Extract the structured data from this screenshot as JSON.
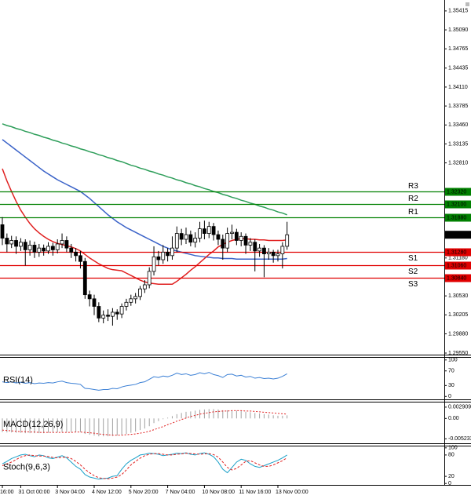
{
  "chart_data": {
    "type": "candlestick",
    "categories": [
      "16:00",
      null,
      null,
      null,
      "31 Oct 00:00",
      null,
      null,
      null,
      null,
      null,
      null,
      null,
      "3 Nov 04:00",
      null,
      null,
      null,
      null,
      null,
      null,
      null,
      "4 Nov 12:00",
      null,
      null,
      null,
      null,
      null,
      null,
      null,
      "5 Nov 20:00",
      null,
      null,
      null,
      null,
      null,
      null,
      null,
      "7 Nov 04:00",
      null,
      null,
      null,
      null,
      null,
      null,
      null,
      "10 Nov 08:00",
      null,
      null,
      null,
      null,
      null,
      null,
      null,
      "11 Nov 16:00",
      null,
      null,
      null,
      null,
      null,
      null,
      null,
      "13 Nov 00:00",
      null,
      null
    ],
    "open": [
      1.3175,
      1.3152,
      1.3142,
      1.3148,
      1.3138,
      1.3145,
      1.3132,
      1.314,
      1.3128,
      1.3135,
      1.313,
      1.3138,
      1.3132,
      1.3142,
      1.3148,
      1.3135,
      1.3128,
      1.3122,
      1.3112,
      1.3055,
      1.3048,
      1.3035,
      1.3015,
      1.302,
      1.3018,
      1.3025,
      1.3022,
      1.3035,
      1.3042,
      1.3048,
      1.3052,
      1.3065,
      1.3072,
      1.3095,
      1.312,
      1.3115,
      1.3128,
      1.3122,
      1.3135,
      1.316,
      1.315,
      1.3158,
      1.3145,
      1.3152,
      1.3168,
      1.316,
      1.3172,
      1.3158,
      1.315,
      1.3135,
      1.316,
      1.3162,
      1.3148,
      1.3155,
      1.314,
      1.3145,
      1.313,
      1.3135,
      1.3125,
      1.3128,
      1.3122,
      1.3125,
      1.3138
    ],
    "high": [
      1.3188,
      1.316,
      1.3156,
      1.3155,
      1.3152,
      1.315,
      1.3148,
      1.3146,
      1.3142,
      1.3141,
      1.3145,
      1.3144,
      1.315,
      1.316,
      1.3155,
      1.3142,
      1.3135,
      1.313,
      1.3118,
      1.3062,
      1.3055,
      1.3042,
      1.3028,
      1.303,
      1.3032,
      1.303,
      1.304,
      1.3048,
      1.3055,
      1.3058,
      1.307,
      1.308,
      1.3102,
      1.3138,
      1.313,
      1.314,
      1.3135,
      1.3155,
      1.3172,
      1.3168,
      1.317,
      1.3165,
      1.3162,
      1.318,
      1.3182,
      1.318,
      1.3178,
      1.3165,
      1.3158,
      1.317,
      1.3175,
      1.3168,
      1.3162,
      1.316,
      1.3152,
      1.315,
      1.3142,
      1.314,
      1.3135,
      1.3132,
      1.3132,
      1.3145,
      1.318
    ],
    "low": [
      1.314,
      1.3128,
      1.3135,
      1.3125,
      1.313,
      1.3105,
      1.3122,
      1.3118,
      1.312,
      1.3122,
      1.3125,
      1.3122,
      1.3126,
      1.3135,
      1.3128,
      1.3118,
      1.3112,
      1.31,
      1.3048,
      1.3035,
      1.302,
      1.3008,
      1.3006,
      1.301,
      1.3002,
      1.3012,
      1.3015,
      1.3028,
      1.3036,
      1.304,
      1.3046,
      1.3058,
      1.3066,
      1.3088,
      1.3105,
      1.3108,
      1.3112,
      1.3115,
      1.3128,
      1.314,
      1.3142,
      1.3138,
      1.3136,
      1.3145,
      1.315,
      1.3152,
      1.3148,
      1.314,
      1.3115,
      1.3128,
      1.315,
      1.314,
      1.3138,
      1.3125,
      1.313,
      1.3095,
      1.312,
      1.3085,
      1.3115,
      1.311,
      1.3112,
      1.31,
      1.3132
    ],
    "close": [
      1.3152,
      1.3142,
      1.3148,
      1.3138,
      1.3145,
      1.3132,
      1.314,
      1.3128,
      1.3135,
      1.313,
      1.3138,
      1.3132,
      1.3142,
      1.3148,
      1.3135,
      1.3128,
      1.3122,
      1.3112,
      1.3055,
      1.3048,
      1.3035,
      1.3015,
      1.302,
      1.3018,
      1.3025,
      1.3022,
      1.3035,
      1.3042,
      1.3048,
      1.3052,
      1.3065,
      1.3072,
      1.3095,
      1.312,
      1.3115,
      1.3128,
      1.3122,
      1.3135,
      1.316,
      1.315,
      1.3158,
      1.3145,
      1.3152,
      1.3168,
      1.316,
      1.3172,
      1.3158,
      1.315,
      1.3135,
      1.316,
      1.3162,
      1.3148,
      1.3155,
      1.314,
      1.3145,
      1.313,
      1.3135,
      1.3125,
      1.3128,
      1.3122,
      1.3125,
      1.3138,
      1.31578
    ],
    "series": [
      {
        "color": "#2e9e5a",
        "values": [
          1.3348,
          1.3345,
          1.3343,
          1.334,
          1.3338,
          1.3335,
          1.3333,
          1.333,
          1.3328,
          1.3325,
          1.3323,
          1.332,
          1.3318,
          1.3315,
          1.3313,
          1.331,
          1.3308,
          1.3305,
          1.3303,
          1.33,
          1.3298,
          1.3295,
          1.3293,
          1.329,
          1.3288,
          1.3285,
          1.3283,
          1.328,
          1.3277,
          1.3275,
          1.3272,
          1.327,
          1.3267,
          1.3265,
          1.3262,
          1.326,
          1.3257,
          1.3255,
          1.3252,
          1.325,
          1.3247,
          1.3245,
          1.3242,
          1.324,
          1.3237,
          1.3235,
          1.3232,
          1.323,
          1.3227,
          1.3225,
          1.3222,
          1.322,
          1.3217,
          1.3215,
          1.3212,
          1.321,
          1.3207,
          1.3205,
          1.3202,
          1.32,
          1.3197,
          1.3195,
          1.3192
        ]
      },
      {
        "color": "#3a62c8",
        "values": [
          1.3321,
          1.3315,
          1.3309,
          1.3303,
          1.3297,
          1.3291,
          1.3285,
          1.3279,
          1.3273,
          1.3267,
          1.3262,
          1.3257,
          1.3252,
          1.3248,
          1.3244,
          1.324,
          1.3236,
          1.3232,
          1.3226,
          1.322,
          1.3213,
          1.3206,
          1.3199,
          1.3192,
          1.3186,
          1.318,
          1.3175,
          1.317,
          1.3166,
          1.3162,
          1.3158,
          1.3154,
          1.315,
          1.3146,
          1.3142,
          1.3138,
          1.3135,
          1.3132,
          1.313,
          1.3128,
          1.3126,
          1.3124,
          1.3122,
          1.3121,
          1.312,
          1.3119,
          1.3118,
          1.3118,
          1.3117,
          1.3117,
          1.3117,
          1.3116,
          1.3116,
          1.3116,
          1.3116,
          1.3116,
          1.3116,
          1.3116,
          1.3116,
          1.3116,
          1.3116,
          1.3116,
          1.3117
        ]
      },
      {
        "color": "#e02020",
        "values": [
          1.3271,
          1.325,
          1.3232,
          1.3215,
          1.32,
          1.3188,
          1.3177,
          1.3168,
          1.3161,
          1.3155,
          1.315,
          1.3146,
          1.3143,
          1.3141,
          1.3139,
          1.3137,
          1.3134,
          1.313,
          1.3124,
          1.3118,
          1.3113,
          1.3108,
          1.3104,
          1.31,
          1.3098,
          1.3097,
          1.3096,
          1.3092,
          1.3088,
          1.3084,
          1.308,
          1.3077,
          1.3075,
          1.3074,
          1.3073,
          1.3073,
          1.3073,
          1.3073,
          1.3078,
          1.3084,
          1.309,
          1.3097,
          1.3103,
          1.311,
          1.3117,
          1.3124,
          1.313,
          1.3137,
          1.3141,
          1.3145,
          1.3148,
          1.315,
          1.3151,
          1.3151,
          1.315,
          1.315,
          1.3149,
          1.3149,
          1.3148,
          1.3148,
          1.3148,
          1.3148,
          1.3149
        ]
      }
    ],
    "ylim": [
      1.29523,
      1.35602
    ],
    "yticks": [
      1.35415,
      {
        "value": 1.3509,
        "label": "1.35090"
      },
      1.34765,
      1.34435,
      {
        "value": 1.3411,
        "label": "1.34110"
      },
      1.33785,
      {
        "value": 1.3346,
        "label": "1.33460"
      },
      1.33135,
      {
        "value": 1.3281,
        "label": "1.32810"
      },
      {
        "value": 1.3118,
        "label": "1.31180"
      },
      {
        "value": 1.3053,
        "label": "1.30530"
      },
      1.30205,
      {
        "value": 1.2988,
        "label": "1.29880"
      },
      {
        "value": 1.2955,
        "label": "1.29550"
      }
    ],
    "levels": [
      {
        "name": "R3",
        "value": 1.3232,
        "label": "1.32320",
        "color": "#008000"
      },
      {
        "name": "R2",
        "value": 1.321,
        "label": "1.32100",
        "color": "#008000"
      },
      {
        "name": "R1",
        "value": 1.3188,
        "label": "1.31880",
        "color": "#008000"
      },
      {
        "name": "S1",
        "value": 1.3128,
        "label": "1.31280",
        "color": "#e00000"
      },
      {
        "name": "S2",
        "value": 1.3106,
        "label": "1.31060",
        "color": "#e00000"
      },
      {
        "name": "S3",
        "value": 1.3084,
        "label": "1.30840",
        "color": "#e00000"
      }
    ],
    "last_price": 1.31578,
    "indicators": [
      {
        "type": "line",
        "title": "RSI(14)",
        "ylim": [
          -8,
          106
        ],
        "yticks": [
          100,
          70,
          30,
          0
        ],
        "series": [
          {
            "color": "#3a7fd5",
            "values": [
              40,
              38,
              40,
              37,
              39,
              36,
              38,
              35,
              37,
              36,
              38,
              37,
              40,
              42,
              38,
              36,
              35,
              33,
              22,
              21,
              19,
              17,
              19,
              19,
              22,
              21,
              26,
              29,
              31,
              33,
              38,
              40,
              47,
              54,
              52,
              56,
              54,
              58,
              64,
              60,
              62,
              58,
              60,
              65,
              62,
              66,
              60,
              57,
              52,
              60,
              61,
              56,
              58,
              53,
              55,
              50,
              52,
              49,
              50,
              48,
              50,
              55,
              62
            ]
          }
        ]
      },
      {
        "type": "macd",
        "title": "MACD(12,26,9)",
        "ylim": [
          -0.0064,
          0.0041
        ],
        "yticks": [
          0.002909,
          {
            "value": 0,
            "label": "0.00"
          },
          -0.005233
        ],
        "series": [
          {
            "color": "#a0a0a0",
            "values": [
              -0.0035,
              -0.0036,
              -0.0036,
              -0.0037,
              -0.0037,
              -0.0038,
              -0.0038,
              -0.0038,
              -0.0038,
              -0.0038,
              -0.0037,
              -0.0037,
              -0.0036,
              -0.0035,
              -0.0035,
              -0.0035,
              -0.0035,
              -0.0035,
              -0.004,
              -0.0042,
              -0.0044,
              -0.0046,
              -0.0046,
              -0.0046,
              -0.0045,
              -0.0044,
              -0.0042,
              -0.004,
              -0.0037,
              -0.0034,
              -0.003,
              -0.0026,
              -0.002,
              -0.0012,
              -0.0007,
              -0.0002,
              0.0002,
              0.0006,
              0.0011,
              0.0014,
              0.0017,
              0.0018,
              0.002,
              0.0022,
              0.0023,
              0.0024,
              0.0024,
              0.0023,
              0.0021,
              0.0021,
              0.0021,
              0.002,
              0.0019,
              0.0017,
              0.0016,
              0.0014,
              0.0013,
              0.0011,
              0.001,
              0.0008,
              0.0007,
              0.0007,
              0.0008
            ]
          },
          {
            "color": "#e02020",
            "values": [
              -0.003,
              -0.0031,
              -0.0032,
              -0.0033,
              -0.0034,
              -0.0034,
              -0.0035,
              -0.0035,
              -0.0036,
              -0.0036,
              -0.0036,
              -0.0036,
              -0.0036,
              -0.0036,
              -0.0036,
              -0.0036,
              -0.0035,
              -0.0035,
              -0.0036,
              -0.0037,
              -0.0038,
              -0.004,
              -0.0041,
              -0.0042,
              -0.0043,
              -0.0043,
              -0.0043,
              -0.0042,
              -0.0041,
              -0.004,
              -0.0038,
              -0.0036,
              -0.0033,
              -0.0029,
              -0.0025,
              -0.0021,
              -0.0016,
              -0.0012,
              -0.0007,
              -0.0003,
              0.0001,
              0.0005,
              0.0008,
              0.0011,
              0.0013,
              0.0015,
              0.0017,
              0.0018,
              0.0019,
              0.0019,
              0.002,
              0.002,
              0.002,
              0.0019,
              0.0019,
              0.0018,
              0.0017,
              0.0016,
              0.0015,
              0.0014,
              0.0013,
              0.0012,
              0.0011
            ]
          }
        ]
      },
      {
        "type": "line",
        "title": "Stoch(9,6,3)",
        "ylim": [
          -4,
          104
        ],
        "yticks": [
          100,
          80,
          20,
          0
        ],
        "series": [
          {
            "color": "#1aa0c8",
            "values": [
              55,
              62,
              70,
              75,
              80,
              82,
              78,
              75,
              80,
              78,
              72,
              70,
              74,
              78,
              72,
              60,
              48,
              40,
              25,
              18,
              15,
              12,
              14,
              15,
              20,
              22,
              40,
              55,
              65,
              72,
              80,
              82,
              85,
              84,
              82,
              78,
              80,
              82,
              85,
              84,
              86,
              82,
              80,
              84,
              86,
              82,
              75,
              60,
              40,
              30,
              45,
              60,
              68,
              65,
              55,
              48,
              45,
              50,
              55,
              60,
              65,
              72,
              80
            ]
          },
          {
            "color": "#e02020",
            "values": [
              50,
              55,
              60,
              67,
              74,
              78,
              80,
              78,
              77,
              77,
              76,
              73,
              72,
              73,
              74,
              70,
              62,
              52,
              40,
              30,
              22,
              16,
              14,
              13,
              15,
              18,
              25,
              38,
              52,
              62,
              71,
              78,
              82,
              84,
              84,
              82,
              80,
              80,
              82,
              83,
              85,
              84,
              83,
              82,
              83,
              84,
              81,
              74,
              60,
              45,
              38,
              42,
              52,
              62,
              64,
              58,
              52,
              48,
              48,
              52,
              58,
              64,
              72
            ]
          }
        ]
      }
    ]
  }
}
